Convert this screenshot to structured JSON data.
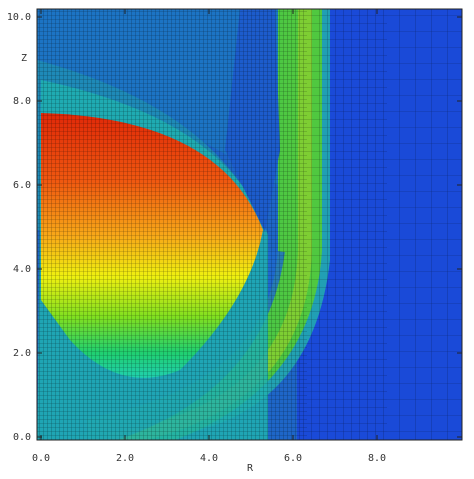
{
  "chart_data": {
    "type": "heatmap",
    "x_label": "R",
    "y_label": "Z",
    "xlim": [
      0,
      10
    ],
    "ylim": [
      0,
      10
    ],
    "xticks": [
      {
        "value": 0,
        "label": "0.0"
      },
      {
        "value": 2,
        "label": "2.0"
      },
      {
        "value": 4,
        "label": "4.0"
      },
      {
        "value": 6,
        "label": "6.0"
      },
      {
        "value": 8,
        "label": "8.0"
      }
    ],
    "yticks": [
      {
        "value": 0,
        "label": "0.0"
      },
      {
        "value": 2,
        "label": "2.0"
      },
      {
        "value": 4,
        "label": "4.0"
      },
      {
        "value": 6,
        "label": "6.0"
      },
      {
        "value": 8,
        "label": "8.0"
      },
      {
        "value": 10,
        "label": "10.0"
      }
    ]
  }
}
